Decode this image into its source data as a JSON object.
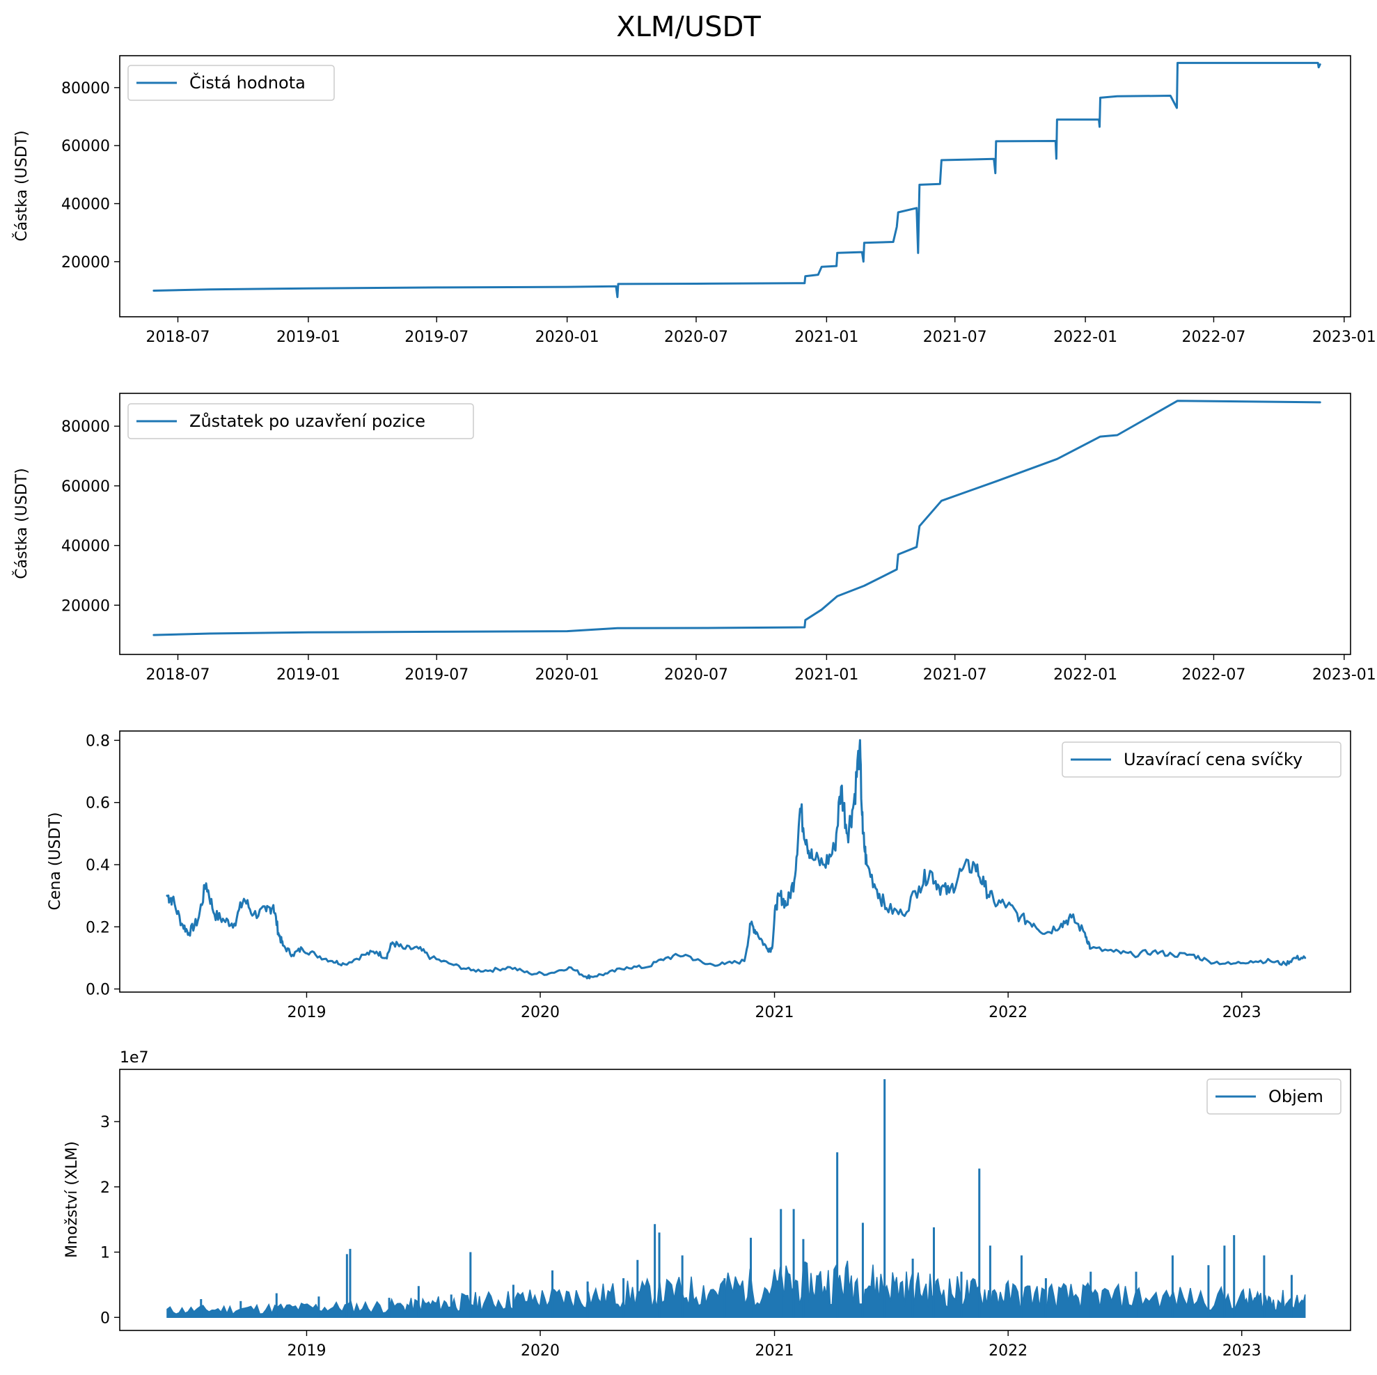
{
  "title": "XLM/USDT",
  "colors": {
    "series": "#1f77b4"
  },
  "chart_data": [
    {
      "id": "net_value",
      "type": "line",
      "ylabel": "Částka (USDT)",
      "legend": "Čistá hodnota",
      "legend_loc": "upper-left",
      "xlim": [
        "2018-04-10",
        "2023-01-10"
      ],
      "ylim": [
        1000,
        91000
      ],
      "xticks": [
        "2018-07-01",
        "2019-01-01",
        "2019-07-01",
        "2020-01-01",
        "2020-07-01",
        "2021-01-01",
        "2021-07-01",
        "2022-01-01",
        "2022-07-01",
        "2023-01-01"
      ],
      "xtick_labels": [
        "2018-07",
        "2019-01",
        "2019-07",
        "2020-01",
        "2020-07",
        "2021-01",
        "2021-07",
        "2022-01",
        "2022-07",
        "2023-01"
      ],
      "yticks": [
        20000,
        40000,
        60000,
        80000
      ],
      "ytick_labels": [
        "20000",
        "40000",
        "60000",
        "80000"
      ],
      "points": [
        [
          "2018-05-28",
          10000
        ],
        [
          "2018-08-15",
          10400
        ],
        [
          "2019-01-01",
          10800
        ],
        [
          "2019-07-01",
          11100
        ],
        [
          "2020-01-01",
          11300
        ],
        [
          "2020-03-10",
          11500
        ],
        [
          "2020-03-12",
          7800
        ],
        [
          "2020-03-13",
          12300
        ],
        [
          "2020-07-01",
          12400
        ],
        [
          "2020-12-01",
          12600
        ],
        [
          "2020-12-02",
          15000
        ],
        [
          "2020-12-20",
          15500
        ],
        [
          "2020-12-25",
          18200
        ],
        [
          "2021-01-15",
          18500
        ],
        [
          "2021-01-16",
          23000
        ],
        [
          "2021-02-20",
          23300
        ],
        [
          "2021-02-22",
          20000
        ],
        [
          "2021-02-23",
          26500
        ],
        [
          "2021-04-05",
          26800
        ],
        [
          "2021-04-10",
          32000
        ],
        [
          "2021-04-12",
          37000
        ],
        [
          "2021-05-08",
          38500
        ],
        [
          "2021-05-10",
          23000
        ],
        [
          "2021-05-12",
          46500
        ],
        [
          "2021-06-10",
          46800
        ],
        [
          "2021-06-12",
          55000
        ],
        [
          "2021-08-25",
          55400
        ],
        [
          "2021-08-27",
          50500
        ],
        [
          "2021-08-28",
          61500
        ],
        [
          "2021-11-20",
          61600
        ],
        [
          "2021-11-21",
          55500
        ],
        [
          "2021-11-22",
          69000
        ],
        [
          "2022-01-20",
          69000
        ],
        [
          "2022-01-21",
          66500
        ],
        [
          "2022-01-22",
          76500
        ],
        [
          "2022-02-15",
          77000
        ],
        [
          "2022-05-01",
          77200
        ],
        [
          "2022-05-10",
          73000
        ],
        [
          "2022-05-11",
          88500
        ],
        [
          "2022-11-25",
          88500
        ],
        [
          "2022-11-26",
          87000
        ],
        [
          "2022-11-28",
          88000
        ]
      ]
    },
    {
      "id": "balance",
      "type": "line",
      "ylabel": "Částka (USDT)",
      "legend": "Zůstatek po uzavření pozice",
      "legend_loc": "upper-left",
      "xlim": [
        "2018-04-10",
        "2023-01-10"
      ],
      "ylim": [
        3500,
        91000
      ],
      "xticks": [
        "2018-07-01",
        "2019-01-01",
        "2019-07-01",
        "2020-01-01",
        "2020-07-01",
        "2021-01-01",
        "2021-07-01",
        "2022-01-01",
        "2022-07-01",
        "2023-01-01"
      ],
      "xtick_labels": [
        "2018-07",
        "2019-01",
        "2019-07",
        "2020-01",
        "2020-07",
        "2021-01",
        "2021-07",
        "2022-01",
        "2022-07",
        "2023-01"
      ],
      "yticks": [
        20000,
        40000,
        60000,
        80000
      ],
      "ytick_labels": [
        "20000",
        "40000",
        "60000",
        "80000"
      ],
      "points": [
        [
          "2018-05-28",
          10000
        ],
        [
          "2018-08-15",
          10500
        ],
        [
          "2019-01-01",
          10900
        ],
        [
          "2019-07-01",
          11100
        ],
        [
          "2020-01-01",
          11300
        ],
        [
          "2020-03-12",
          12300
        ],
        [
          "2020-08-01",
          12400
        ],
        [
          "2020-12-01",
          12600
        ],
        [
          "2020-12-02",
          15000
        ],
        [
          "2020-12-25",
          18500
        ],
        [
          "2021-01-16",
          23000
        ],
        [
          "2021-02-23",
          26500
        ],
        [
          "2021-04-10",
          32000
        ],
        [
          "2021-04-12",
          37000
        ],
        [
          "2021-05-08",
          39500
        ],
        [
          "2021-05-12",
          46500
        ],
        [
          "2021-06-12",
          55000
        ],
        [
          "2021-08-28",
          61500
        ],
        [
          "2021-11-22",
          69000
        ],
        [
          "2022-01-22",
          76500
        ],
        [
          "2022-02-15",
          77000
        ],
        [
          "2022-05-11",
          88500
        ],
        [
          "2022-11-28",
          88000
        ]
      ]
    },
    {
      "id": "price",
      "type": "line",
      "ylabel": "Cena (USDT)",
      "legend": "Uzavírací cena svíčky",
      "legend_loc": "upper-right",
      "xlim": [
        "2018-03-15",
        "2023-06-20"
      ],
      "ylim": [
        -0.01,
        0.83
      ],
      "xticks": [
        "2019-01-01",
        "2020-01-01",
        "2021-01-01",
        "2022-01-01",
        "2023-01-01"
      ],
      "xtick_labels": [
        "2019",
        "2020",
        "2021",
        "2022",
        "2023"
      ],
      "yticks": [
        0.0,
        0.2,
        0.4,
        0.6,
        0.8
      ],
      "ytick_labels": [
        "0.0",
        "0.2",
        "0.4",
        "0.6",
        "0.8"
      ],
      "points": [
        [
          "2018-05-28",
          0.3
        ],
        [
          "2018-06-05",
          0.29
        ],
        [
          "2018-06-20",
          0.21
        ],
        [
          "2018-07-01",
          0.18
        ],
        [
          "2018-07-15",
          0.22
        ],
        [
          "2018-07-28",
          0.34
        ],
        [
          "2018-08-10",
          0.24
        ],
        [
          "2018-08-25",
          0.22
        ],
        [
          "2018-09-10",
          0.21
        ],
        [
          "2018-09-25",
          0.29
        ],
        [
          "2018-10-10",
          0.24
        ],
        [
          "2018-10-30",
          0.25
        ],
        [
          "2018-11-10",
          0.27
        ],
        [
          "2018-11-18",
          0.18
        ],
        [
          "2018-11-25",
          0.14
        ],
        [
          "2018-12-10",
          0.11
        ],
        [
          "2018-12-25",
          0.13
        ],
        [
          "2019-01-15",
          0.11
        ],
        [
          "2019-02-10",
          0.09
        ],
        [
          "2019-03-01",
          0.08
        ],
        [
          "2019-04-01",
          0.11
        ],
        [
          "2019-04-20",
          0.12
        ],
        [
          "2019-05-05",
          0.1
        ],
        [
          "2019-05-15",
          0.15
        ],
        [
          "2019-06-01",
          0.13
        ],
        [
          "2019-06-25",
          0.13
        ],
        [
          "2019-07-15",
          0.1
        ],
        [
          "2019-08-15",
          0.08
        ],
        [
          "2019-09-15",
          0.06
        ],
        [
          "2019-10-15",
          0.06
        ],
        [
          "2019-11-15",
          0.07
        ],
        [
          "2019-12-15",
          0.05
        ],
        [
          "2020-01-15",
          0.05
        ],
        [
          "2020-02-15",
          0.07
        ],
        [
          "2020-03-12",
          0.04
        ],
        [
          "2020-03-20",
          0.04
        ],
        [
          "2020-04-15",
          0.05
        ],
        [
          "2020-05-15",
          0.07
        ],
        [
          "2020-06-15",
          0.07
        ],
        [
          "2020-07-15",
          0.1
        ],
        [
          "2020-08-15",
          0.11
        ],
        [
          "2020-09-15",
          0.08
        ],
        [
          "2020-10-15",
          0.08
        ],
        [
          "2020-11-15",
          0.09
        ],
        [
          "2020-11-25",
          0.21
        ],
        [
          "2020-12-05",
          0.18
        ],
        [
          "2020-12-20",
          0.13
        ],
        [
          "2020-12-28",
          0.13
        ],
        [
          "2021-01-03",
          0.27
        ],
        [
          "2021-01-10",
          0.3
        ],
        [
          "2021-01-20",
          0.27
        ],
        [
          "2021-02-01",
          0.35
        ],
        [
          "2021-02-10",
          0.58
        ],
        [
          "2021-02-20",
          0.48
        ],
        [
          "2021-03-01",
          0.42
        ],
        [
          "2021-03-20",
          0.4
        ],
        [
          "2021-04-05",
          0.45
        ],
        [
          "2021-04-15",
          0.65
        ],
        [
          "2021-04-25",
          0.5
        ],
        [
          "2021-05-05",
          0.6
        ],
        [
          "2021-05-14",
          0.78
        ],
        [
          "2021-05-19",
          0.5
        ],
        [
          "2021-05-25",
          0.4
        ],
        [
          "2021-06-10",
          0.32
        ],
        [
          "2021-06-25",
          0.26
        ],
        [
          "2021-07-20",
          0.24
        ],
        [
          "2021-08-15",
          0.33
        ],
        [
          "2021-09-01",
          0.38
        ],
        [
          "2021-09-15",
          0.33
        ],
        [
          "2021-10-01",
          0.31
        ],
        [
          "2021-10-20",
          0.38
        ],
        [
          "2021-11-10",
          0.4
        ],
        [
          "2021-11-25",
          0.33
        ],
        [
          "2021-12-10",
          0.28
        ],
        [
          "2021-12-31",
          0.27
        ],
        [
          "2022-01-20",
          0.23
        ],
        [
          "2022-02-10",
          0.21
        ],
        [
          "2022-03-01",
          0.18
        ],
        [
          "2022-03-25",
          0.21
        ],
        [
          "2022-04-10",
          0.23
        ],
        [
          "2022-05-01",
          0.18
        ],
        [
          "2022-05-10",
          0.13
        ],
        [
          "2022-06-15",
          0.12
        ],
        [
          "2022-07-15",
          0.11
        ],
        [
          "2022-08-15",
          0.12
        ],
        [
          "2022-09-15",
          0.11
        ],
        [
          "2022-10-15",
          0.11
        ],
        [
          "2022-11-10",
          0.09
        ],
        [
          "2022-12-15",
          0.08
        ],
        [
          "2023-01-15",
          0.09
        ],
        [
          "2023-02-15",
          0.09
        ],
        [
          "2023-03-10",
          0.08
        ],
        [
          "2023-03-25",
          0.1
        ],
        [
          "2023-04-10",
          0.1
        ]
      ]
    },
    {
      "id": "volume",
      "type": "line",
      "ylabel": "Množství (XLM)",
      "legend": "Objem",
      "legend_loc": "upper-right",
      "offset_label": "1e7",
      "xlim": [
        "2018-03-15",
        "2023-06-20"
      ],
      "ylim": [
        -0.2,
        3.8
      ],
      "units_multiplier": 10000000,
      "xticks": [
        "2019-01-01",
        "2020-01-01",
        "2021-01-01",
        "2022-01-01",
        "2023-01-01"
      ],
      "xtick_labels": [
        "2019",
        "2020",
        "2021",
        "2022",
        "2023"
      ],
      "yticks": [
        0,
        1,
        2,
        3
      ],
      "ytick_labels": [
        "0",
        "1",
        "2",
        "3"
      ],
      "baseline": [
        [
          "2018-05-28",
          0.15
        ],
        [
          "2018-12-01",
          0.2
        ],
        [
          "2019-06-01",
          0.25
        ],
        [
          "2019-10-01",
          0.35
        ],
        [
          "2020-03-01",
          0.45
        ],
        [
          "2020-08-01",
          0.55
        ],
        [
          "2021-01-01",
          0.7
        ],
        [
          "2021-05-01",
          0.8
        ],
        [
          "2021-09-01",
          0.6
        ],
        [
          "2022-01-01",
          0.5
        ],
        [
          "2022-06-01",
          0.45
        ],
        [
          "2023-01-01",
          0.4
        ],
        [
          "2023-04-10",
          0.35
        ]
      ],
      "spikes": [
        [
          "2018-07-20",
          0.28
        ],
        [
          "2018-09-20",
          0.25
        ],
        [
          "2018-11-15",
          0.37
        ],
        [
          "2019-01-20",
          0.32
        ],
        [
          "2019-03-05",
          0.97
        ],
        [
          "2019-03-10",
          1.05
        ],
        [
          "2019-05-10",
          0.3
        ],
        [
          "2019-06-25",
          0.48
        ],
        [
          "2019-08-15",
          0.35
        ],
        [
          "2019-09-14",
          1.0
        ],
        [
          "2019-11-20",
          0.5
        ],
        [
          "2020-01-20",
          0.72
        ],
        [
          "2020-03-15",
          0.55
        ],
        [
          "2020-05-10",
          0.6
        ],
        [
          "2020-06-01",
          0.88
        ],
        [
          "2020-06-28",
          1.43
        ],
        [
          "2020-07-05",
          1.3
        ],
        [
          "2020-08-10",
          0.95
        ],
        [
          "2020-10-15",
          0.6
        ],
        [
          "2020-11-25",
          1.22
        ],
        [
          "2021-01-11",
          1.66
        ],
        [
          "2021-01-31",
          1.66
        ],
        [
          "2021-02-15",
          1.2
        ],
        [
          "2021-04-09",
          2.53
        ],
        [
          "2021-05-19",
          1.45
        ],
        [
          "2021-06-22",
          3.65
        ],
        [
          "2021-08-05",
          0.9
        ],
        [
          "2021-09-07",
          1.38
        ],
        [
          "2021-10-20",
          0.7
        ],
        [
          "2021-11-17",
          2.28
        ],
        [
          "2021-12-04",
          1.1
        ],
        [
          "2022-01-22",
          0.95
        ],
        [
          "2022-03-01",
          0.6
        ],
        [
          "2022-05-10",
          0.7
        ],
        [
          "2022-07-20",
          0.7
        ],
        [
          "2022-09-15",
          0.95
        ],
        [
          "2022-11-10",
          0.8
        ],
        [
          "2022-12-05",
          1.1
        ],
        [
          "2022-12-20",
          1.26
        ],
        [
          "2023-02-05",
          0.95
        ],
        [
          "2023-03-20",
          0.65
        ]
      ]
    }
  ]
}
